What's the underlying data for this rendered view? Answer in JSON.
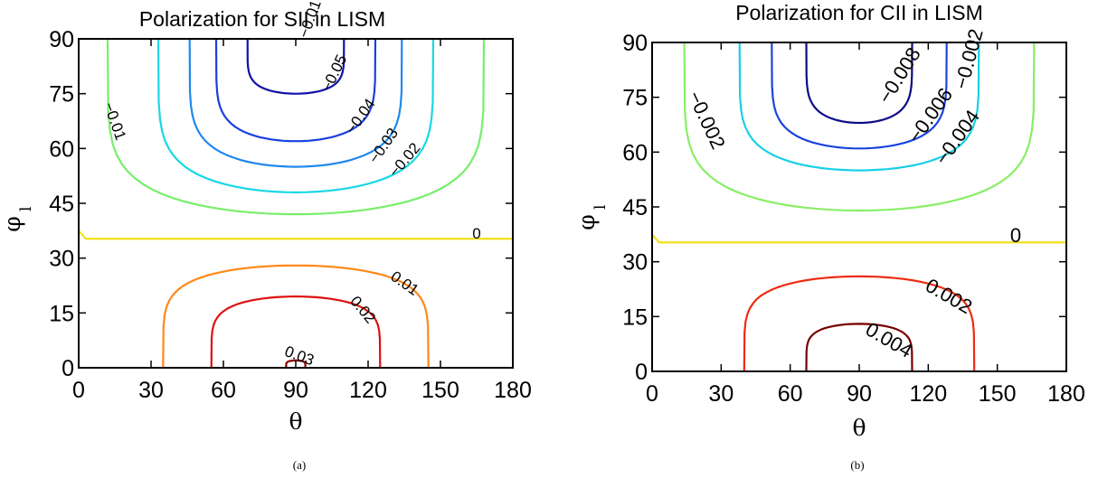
{
  "chart_data": [
    {
      "panel_id": "a",
      "type": "contour",
      "title": "Polarization for SII in LISM",
      "xlabel": "θ",
      "ylabel_main": "φ",
      "ylabel_sub": "l",
      "caption": "(a)",
      "xlim": [
        0,
        180
      ],
      "ylim": [
        0,
        90
      ],
      "xticks": [
        0,
        30,
        60,
        90,
        120,
        150,
        180
      ],
      "yticks": [
        0,
        15,
        30,
        45,
        60,
        75,
        90
      ],
      "grid": false,
      "levels": [
        {
          "label": "−0.05",
          "value": -0.05,
          "color": "#1111aa",
          "kind": "cap",
          "x_edge": 70,
          "y_min": 75
        },
        {
          "label": "−0.04",
          "value": -0.04,
          "color": "#1a3fdd",
          "kind": "cap",
          "x_edge": 57,
          "y_min": 62
        },
        {
          "label": "−0.03",
          "value": -0.03,
          "color": "#1e88ee",
          "kind": "cap",
          "x_edge": 46,
          "y_min": 55
        },
        {
          "label": "−0.02",
          "value": -0.02,
          "color": "#18d8e6",
          "kind": "cap",
          "x_edge": 33,
          "y_min": 48
        },
        {
          "label": "−0.01",
          "value": -0.01,
          "color": "#77ee6a",
          "kind": "cap",
          "x_edge": 12,
          "y_min": 42
        },
        {
          "label": "0",
          "value": 0,
          "color": "#f2e01a",
          "kind": "flat",
          "y": 35.3
        },
        {
          "label": "0.01",
          "value": 0.01,
          "color": "#ff8818",
          "kind": "arch",
          "x_edge": 35,
          "y_max": 28
        },
        {
          "label": "0.02",
          "value": 0.02,
          "color": "#dd1010",
          "kind": "arch",
          "x_edge": 55,
          "y_max": 19.5
        },
        {
          "label": "0.03",
          "value": 0.03,
          "color": "#880000",
          "kind": "arch",
          "x_edge": 86,
          "y_max": 2
        }
      ]
    },
    {
      "panel_id": "b",
      "type": "contour",
      "title": "Polarization for CII in LISM",
      "xlabel": "θ",
      "ylabel_main": "φ",
      "ylabel_sub": "l",
      "caption": "(b)",
      "xlim": [
        0,
        180
      ],
      "ylim": [
        0,
        90
      ],
      "xticks": [
        0,
        30,
        60,
        90,
        120,
        150,
        180
      ],
      "yticks": [
        0,
        15,
        30,
        45,
        60,
        75,
        90
      ],
      "grid": false,
      "levels": [
        {
          "label": "−0.008",
          "value": -0.008,
          "color": "#0c0c88",
          "kind": "cap",
          "x_edge": 67,
          "y_min": 68
        },
        {
          "label": "−0.006",
          "value": -0.006,
          "color": "#1a44dd",
          "kind": "cap",
          "x_edge": 52,
          "y_min": 61
        },
        {
          "label": "−0.004",
          "value": -0.004,
          "color": "#18d0e6",
          "kind": "cap",
          "x_edge": 38,
          "y_min": 55
        },
        {
          "label": "−0.002",
          "value": -0.002,
          "color": "#88ee66",
          "kind": "cap",
          "x_edge": 14,
          "y_min": 44
        },
        {
          "label": "0",
          "value": 0,
          "color": "#f2e01a",
          "kind": "flat",
          "y": 35.3
        },
        {
          "label": "0.002",
          "value": 0.002,
          "color": "#ee2a10",
          "kind": "arch",
          "x_edge": 40,
          "y_max": 26
        },
        {
          "label": "0.004",
          "value": 0.004,
          "color": "#770000",
          "kind": "arch",
          "x_edge": 67,
          "y_max": 13
        }
      ]
    }
  ]
}
